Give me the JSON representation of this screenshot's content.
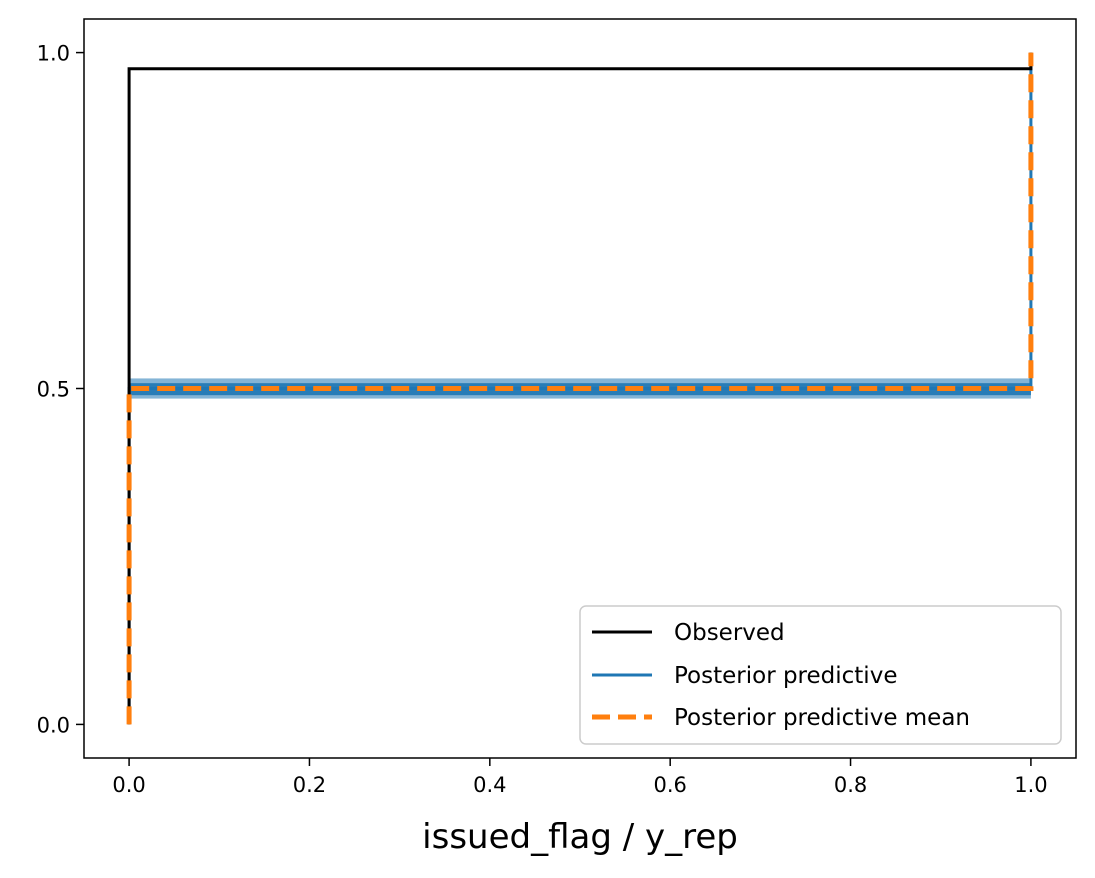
{
  "chart_data": {
    "type": "line",
    "title": "",
    "xlabel": "issued_flag / y_rep",
    "ylabel": "",
    "xlim": [
      -0.05,
      1.05
    ],
    "ylim": [
      -0.05,
      1.05
    ],
    "x_ticks": [
      0.0,
      0.2,
      0.4,
      0.6,
      0.8,
      1.0
    ],
    "x_tick_labels": [
      "0.0",
      "0.2",
      "0.4",
      "0.6",
      "0.8",
      "1.0"
    ],
    "y_ticks": [
      0.0,
      0.5,
      1.0
    ],
    "y_tick_labels": [
      "0.0",
      "0.5",
      "1.0"
    ],
    "grid": false,
    "legend_position": "lower-right",
    "series": [
      {
        "name": "Observed",
        "color": "#000000",
        "style": "solid",
        "x": [
          0.0,
          0.0,
          1.0,
          1.0
        ],
        "y": [
          0.0,
          0.976,
          0.976,
          1.0
        ]
      },
      {
        "name": "Posterior predictive",
        "color": "#1f77b4",
        "style": "solid",
        "band": [
          0.485,
          0.515
        ],
        "x": [
          0.0,
          0.0,
          1.0,
          1.0
        ],
        "y": [
          0.0,
          0.5,
          0.5,
          1.0
        ]
      },
      {
        "name": "Posterior predictive mean",
        "color": "#ff7f0e",
        "style": "dashed",
        "x": [
          0.0,
          0.0,
          1.0,
          1.0
        ],
        "y": [
          0.0,
          0.5,
          0.5,
          1.0
        ]
      }
    ]
  }
}
